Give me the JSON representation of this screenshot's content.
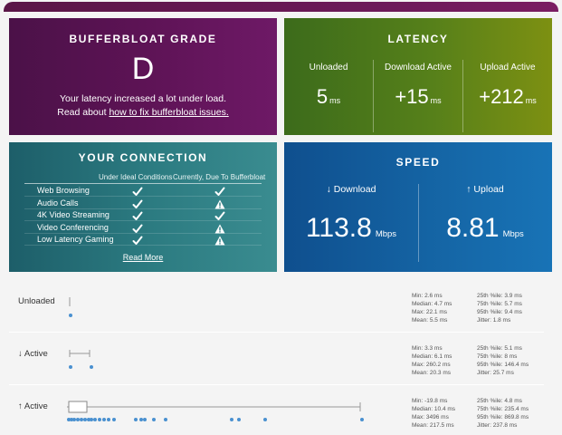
{
  "grade": {
    "title": "BUFFERBLOAT GRADE",
    "letter": "D",
    "message": "Your latency increased a lot under load.",
    "read_about": "Read about ",
    "link_text": "how to fix bufferbloat issues."
  },
  "latency": {
    "title": "LATENCY",
    "cols": [
      {
        "label": "Unloaded",
        "value": "5",
        "unit": "ms"
      },
      {
        "label": "Download Active",
        "value": "+15",
        "unit": "ms"
      },
      {
        "label": "Upload Active",
        "value": "+212",
        "unit": "ms"
      }
    ]
  },
  "connection": {
    "title": "YOUR CONNECTION",
    "col_ideal": "Under Ideal Conditions",
    "col_current": "Currently, Due To Bufferbloat",
    "rows": [
      {
        "label": "Web Browsing",
        "ideal": "check",
        "current": "check"
      },
      {
        "label": "Audio Calls",
        "ideal": "check",
        "current": "warning"
      },
      {
        "label": "4K Video Streaming",
        "ideal": "check",
        "current": "check"
      },
      {
        "label": "Video Conferencing",
        "ideal": "check",
        "current": "warning"
      },
      {
        "label": "Low Latency Gaming",
        "ideal": "check",
        "current": "warning"
      }
    ],
    "read_more": "Read More"
  },
  "speed": {
    "title": "SPEED",
    "download": {
      "label": "↓ Download",
      "value": "113.8",
      "unit": "Mbps"
    },
    "upload": {
      "label": "↑ Upload",
      "value": "8.81",
      "unit": "Mbps"
    }
  },
  "stats": [
    {
      "name": "Unloaded",
      "left": [
        "Min: 2.6 ms",
        "Median: 4.7 ms",
        "Max: 22.1 ms",
        "Mean: 5.5 ms"
      ],
      "right": [
        "25th %ile: 3.9 ms",
        "75th %ile: 5.7 ms",
        "95th %ile: 9.4 ms",
        "Jitter: 1.8 ms"
      ]
    },
    {
      "name": "↓ Active",
      "left": [
        "Min: 3.3 ms",
        "Median: 6.1 ms",
        "Max: 260.2 ms",
        "Mean: 20.3 ms"
      ],
      "right": [
        "25th %ile: 5.1 ms",
        "75th %ile: 8 ms",
        "95th %ile: 146.4 ms",
        "Jitter: 25.7 ms"
      ]
    },
    {
      "name": "↑ Active",
      "left": [
        "Min: -19.8 ms",
        "Median: 10.4 ms",
        "Max: 3496 ms",
        "Mean: 217.5 ms"
      ],
      "right": [
        "25th %ile: 4.8 ms",
        "75th %ile: 235.4 ms",
        "95th %ile: 869.8 ms",
        "Jitter: 237.8 ms"
      ]
    }
  ],
  "colors": {
    "grade_bg": "#5d1355",
    "latency_bg": "#56801a",
    "connection_bg": "#2b7a80",
    "speed_bg": "#1566a6",
    "dot": "#4a90d0"
  }
}
